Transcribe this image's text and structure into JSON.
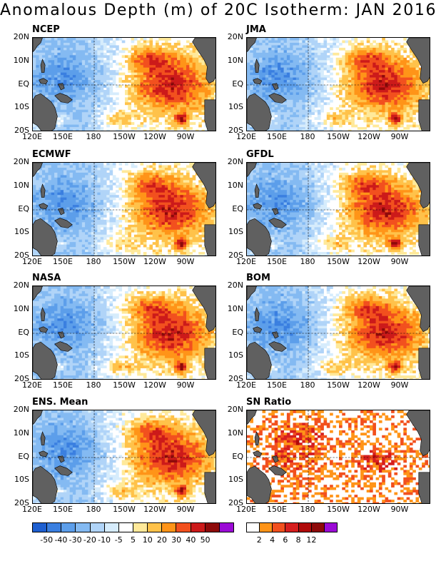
{
  "title": "Anomalous Depth (m) of 20C Isotherm: JAN 2016",
  "y_ticks": [
    "20N",
    "10N",
    "EQ",
    "10S",
    "20S"
  ],
  "x_ticks": [
    "120E",
    "150E",
    "180",
    "150W",
    "120W",
    "90W"
  ],
  "panels": [
    {
      "label": "NCEP",
      "type": "anomaly",
      "seed": 11
    },
    {
      "label": "JMA",
      "type": "anomaly",
      "seed": 23
    },
    {
      "label": "ECMWF",
      "type": "anomaly",
      "seed": 37
    },
    {
      "label": "GFDL",
      "type": "anomaly",
      "seed": 41
    },
    {
      "label": "NASA",
      "type": "anomaly",
      "seed": 53
    },
    {
      "label": "BOM",
      "type": "anomaly",
      "seed": 67
    },
    {
      "label": "ENS. Mean",
      "type": "anomaly",
      "seed": 79
    },
    {
      "label": "SN Ratio",
      "type": "snr",
      "seed": 91
    }
  ],
  "anomaly_scale": {
    "colors": [
      "#1e5fd0",
      "#3a7fe0",
      "#5c9eea",
      "#84baf2",
      "#b0d4f8",
      "#d6ecfc",
      "#ffffff",
      "#ffe99a",
      "#ffc24a",
      "#ff9418",
      "#f2501e",
      "#cc1a1a",
      "#8e0a0a",
      "#9b0ad6"
    ],
    "labels": [
      "-50",
      "-40",
      "-30",
      "-20",
      "-10",
      "-5",
      "5",
      "10",
      "20",
      "30",
      "40",
      "50"
    ]
  },
  "snr_scale": {
    "colors": [
      "#ffffff",
      "#ff9418",
      "#f2501e",
      "#d61e1e",
      "#b00a0a",
      "#8e0a0a",
      "#9b0ad6"
    ],
    "labels": [
      "2",
      "4",
      "6",
      "8",
      "12"
    ]
  },
  "land_color": "#606060"
}
